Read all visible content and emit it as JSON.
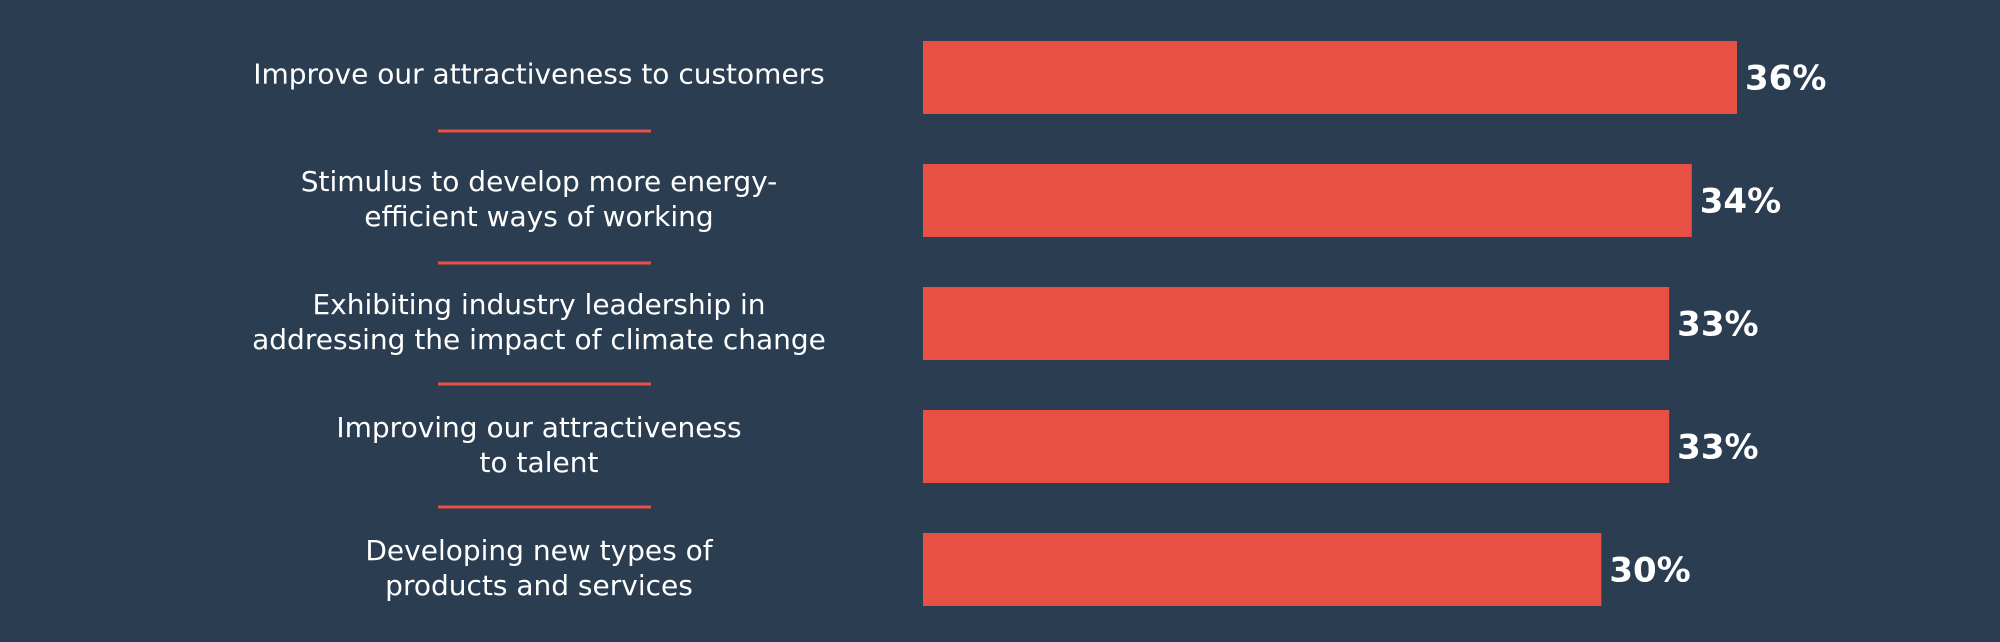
{
  "chart_data": {
    "type": "bar",
    "orientation": "horizontal",
    "categories": [
      [
        "Improve our attractiveness to customers"
      ],
      [
        "Stimulus to develop more energy-",
        "efficient ways of working"
      ],
      [
        "Exhibiting industry leadership in",
        "addressing the impact of climate change"
      ],
      [
        "Improving our attractiveness",
        "to talent"
      ],
      [
        "Developing new types of",
        "products and services"
      ]
    ],
    "values": [
      36,
      34,
      33,
      33,
      30
    ],
    "value_labels": [
      "36%",
      "34%",
      "33%",
      "33%",
      "30%"
    ],
    "unit": "%",
    "xlim": [
      0,
      36
    ],
    "grid": false,
    "legend": "none"
  },
  "colors": {
    "background": "#2b3d50",
    "bar": "#e85045",
    "divider": "#e85045",
    "text": "#ffffff"
  }
}
